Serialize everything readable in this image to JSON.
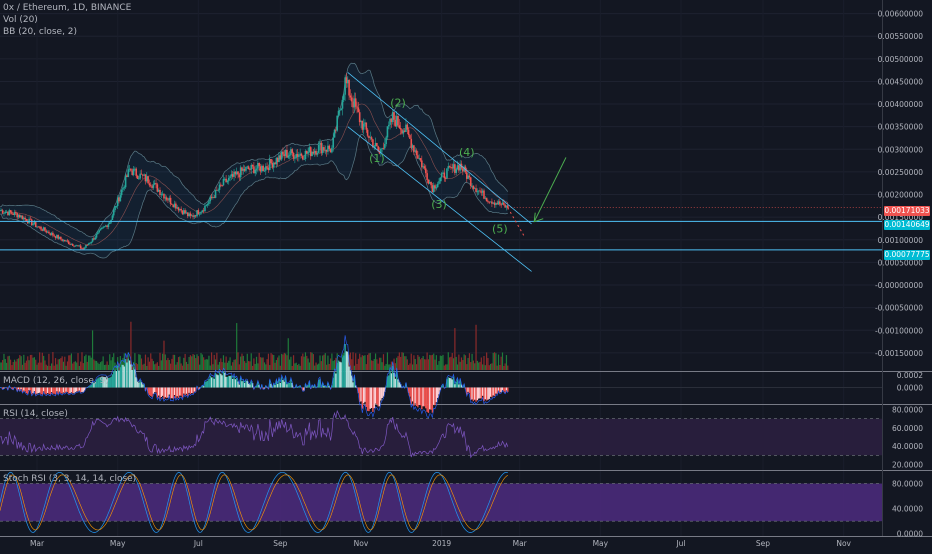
{
  "header": {
    "title": "0x / Ethereum, 1D, BINANCE",
    "vol": "Vol (20)",
    "bb": "BB (20, close, 2)"
  },
  "panels": {
    "macd_label": "MACD (12, 26, close, 9)",
    "rsi_label": "RSI (14, close)",
    "stoch_label": "Stoch RSI (3, 3, 14, 14, close)"
  },
  "colors": {
    "background": "#131722",
    "up": "#26a69a",
    "down": "#ef5350",
    "vol_up": "#1f7a3a",
    "vol_down": "#8b2a2a",
    "channel": "#4fc3f7",
    "wave": "#4caf50",
    "rsi_band": "#2b1f3f",
    "stoch_band": "#4a2a7a"
  },
  "price_tags": [
    {
      "text": "0.00171033",
      "color": "#ef5350"
    },
    {
      "text": "0.00140649",
      "color": "#00bcd4"
    },
    {
      "text": "0.00077775",
      "color": "#00bcd4"
    }
  ],
  "chart_data": [
    {
      "type": "line",
      "title": "0x / Ethereum, 1D, BINANCE",
      "y_ticks": [
        "0.00600000",
        "0.00550000",
        "0.00500000",
        "0.00450000",
        "0.00400000",
        "0.00350000",
        "0.00300000",
        "0.00250000",
        "0.00200000",
        "0.00150000",
        "0.00100000",
        "0.00050000",
        "-0.00000000",
        "-0.00050000",
        "-0.00100000",
        "-0.00150000"
      ],
      "x_ticks": [
        "Mar",
        "May",
        "Jul",
        "Sep",
        "Nov",
        "2019",
        "Mar",
        "May",
        "Jul",
        "Sep",
        "Nov"
      ],
      "ylim": [
        -0.0019,
        0.0063
      ],
      "x_range": [
        "2018-02-01",
        "2019-11-30"
      ],
      "series": [
        {
          "x": [
            "2018-02-01",
            "2018-02-15",
            "2018-03-01",
            "2018-03-20",
            "2018-04-05",
            "2018-04-25",
            "2018-05-10",
            "2018-05-25",
            "2018-06-10",
            "2018-06-25",
            "2018-07-05",
            "2018-07-20",
            "2018-08-05",
            "2018-08-20",
            "2018-09-05",
            "2018-09-20",
            "2018-10-01",
            "2018-10-10",
            "2018-10-20",
            "2018-11-01",
            "2018-11-15",
            "2018-11-25",
            "2018-12-05",
            "2018-12-15",
            "2018-12-25",
            "2019-01-05",
            "2019-01-15",
            "2019-01-25",
            "2019-02-05",
            "2019-02-20"
          ],
          "values": [
            0.00165,
            0.00155,
            0.0013,
            0.001,
            0.0008,
            0.0014,
            0.00255,
            0.0023,
            0.00185,
            0.0015,
            0.0017,
            0.00225,
            0.00255,
            0.0026,
            0.0029,
            0.0029,
            0.00305,
            0.003,
            0.0045,
            0.0036,
            0.0029,
            0.0037,
            0.0034,
            0.0028,
            0.00215,
            0.0025,
            0.00265,
            0.0022,
            0.0019,
            0.00171
          ]
        }
      ],
      "wave_labels": [
        {
          "text": "(1)",
          "x": "2018-11-13",
          "y": 0.00272
        },
        {
          "text": "(2)",
          "x": "2018-11-29",
          "y": 0.00395
        },
        {
          "text": "(3)",
          "x": "2018-12-30",
          "y": 0.0017
        },
        {
          "text": "(4)",
          "x": "2019-01-20",
          "y": 0.00285
        },
        {
          "text": "(5)",
          "x": "2019-02-14",
          "y": 0.00116
        }
      ],
      "horizontal_lines": [
        0.00140649,
        0.00077775
      ]
    },
    {
      "type": "bar",
      "title": "MACD (12, 26, close, 9)",
      "y_ticks": [
        "0.0002",
        "0.0000"
      ],
      "ylim": [
        -0.00025,
        0.00025
      ]
    },
    {
      "type": "line",
      "title": "RSI (14, close)",
      "y_ticks": [
        "80.0000",
        "60.0000",
        "40.0000",
        "20.0000"
      ],
      "ylim": [
        15,
        85
      ],
      "bands": [
        30,
        70
      ]
    },
    {
      "type": "line",
      "title": "Stoch RSI (3, 3, 14, 14, close)",
      "y_ticks": [
        "80.0000",
        "40.0000",
        "0.0000"
      ],
      "ylim": [
        -2,
        100
      ],
      "bands": [
        20,
        80
      ]
    }
  ]
}
